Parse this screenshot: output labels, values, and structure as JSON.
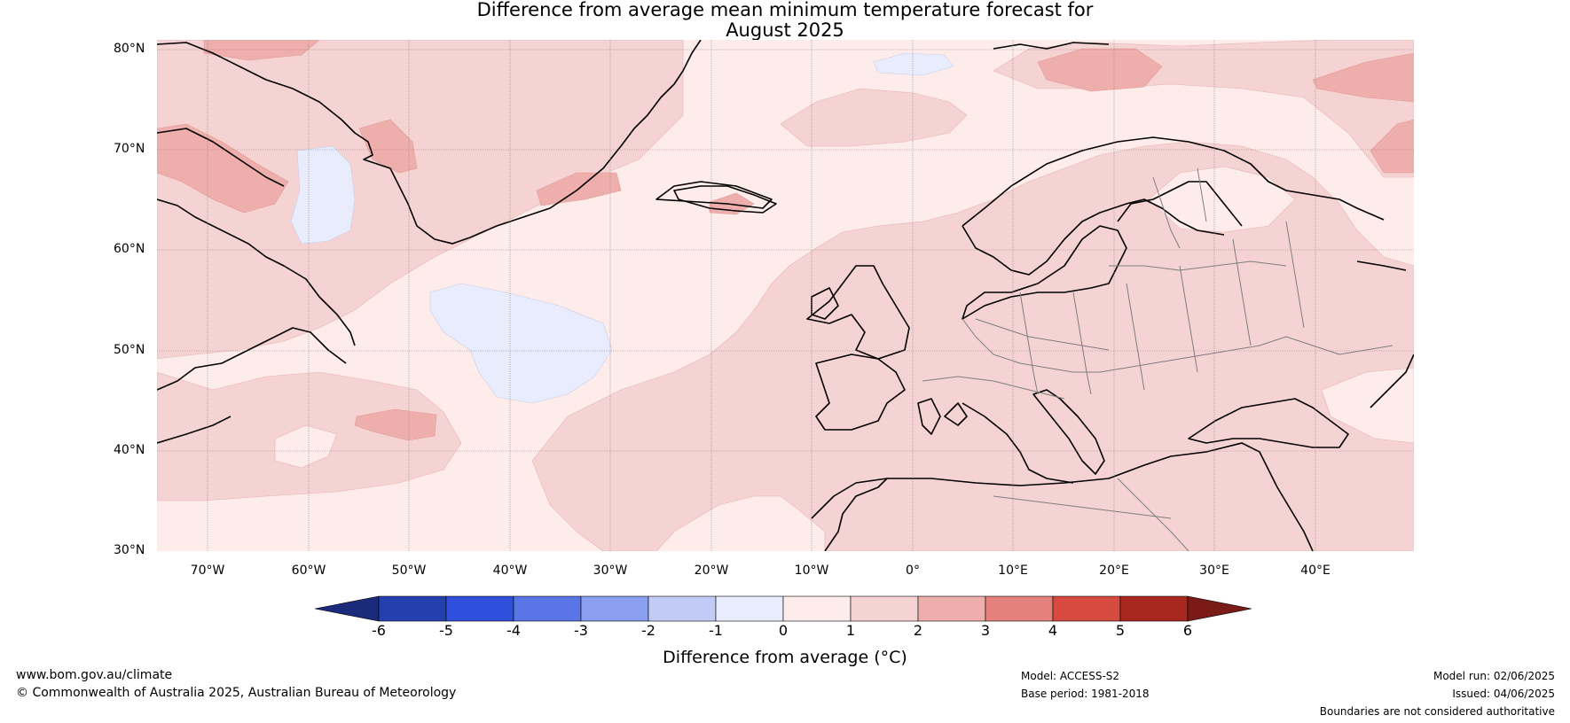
{
  "title_line1": "Difference from average mean minimum temperature forecast for",
  "title_line2": "August 2025",
  "lat_labels": [
    "80°N",
    "70°N",
    "60°N",
    "50°N",
    "40°N",
    "30°N"
  ],
  "lon_labels": [
    "70°W",
    "60°W",
    "50°W",
    "40°W",
    "30°W",
    "20°W",
    "10°W",
    "0°",
    "10°E",
    "20°E",
    "30°E",
    "40°E"
  ],
  "colorbar": {
    "ticks": [
      "-6",
      "-5",
      "-4",
      "-3",
      "-2",
      "-1",
      "0",
      "1",
      "2",
      "3",
      "4",
      "5",
      "6"
    ],
    "title": "Difference from average (°C)",
    "colors": [
      "#1b2a7a",
      "#243fae",
      "#2f4fdc",
      "#5a75e6",
      "#8a9ff0",
      "#c2cbf6",
      "#e8ecfc",
      "#fdecea",
      "#f5d3d2",
      "#eeaeac",
      "#e5807b",
      "#d64a40",
      "#a8271f",
      "#7b1b18"
    ]
  },
  "footer": {
    "website": "www.bom.gov.au/climate",
    "copyright": "© Commonwealth of Australia 2025, Australian Bureau of Meteorology",
    "model": "Model: ACCESS-S2",
    "base_period": "Base period: 1981-2018",
    "model_run": "Model run: 02/06/2025",
    "issued": "Issued: 04/06/2025",
    "disclaimer": "Boundaries are not considered authoritative"
  }
}
